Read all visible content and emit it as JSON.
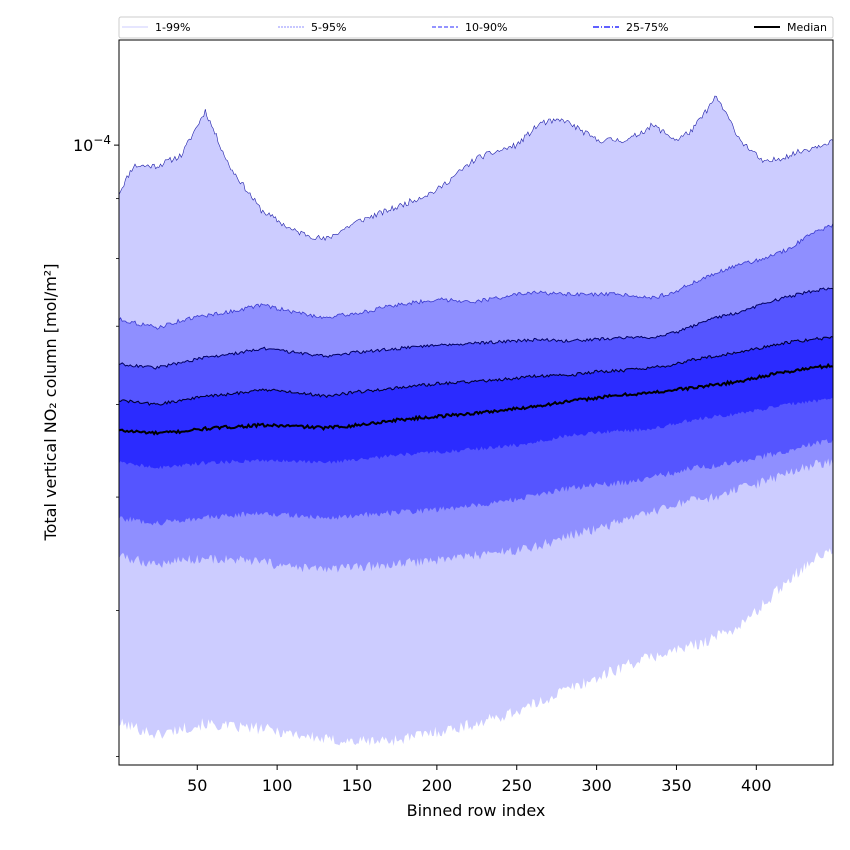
{
  "chart_data": {
    "type": "area",
    "title": "",
    "xlabel": "Binned row index",
    "ylabel": "Total vertical NO₂ column [mol/m²]",
    "yscale": "log",
    "xlim": [
      1,
      448
    ],
    "ylim": [
      2.95e-05,
      0.000123
    ],
    "x_ticks": [
      50,
      100,
      150,
      200,
      250,
      300,
      350,
      400
    ],
    "x_tick_labels": [
      "50",
      "100",
      "150",
      "200",
      "250",
      "300",
      "350",
      "400"
    ],
    "y_major_tick_value": 0.0001,
    "y_major_tick_label_base": "10",
    "y_major_tick_label_exp": "−4",
    "y_minor_ticks": [
      3e-05,
      4e-05,
      5e-05,
      6e-05,
      7e-05,
      8e-05,
      9e-05
    ],
    "legend": {
      "location": "top, spanning full width",
      "entries": [
        "1-99%",
        "5-95%",
        "10-90%",
        "25-75%",
        "Median"
      ]
    },
    "colors": {
      "band_outer": "#ccccff",
      "band_5_95": "#8f8fff",
      "band_10_90": "#5555ff",
      "band_25_75": "#2b2bff",
      "median": "#000000",
      "outline_top": "#1f1fa8"
    },
    "anchor_x": [
      1,
      10,
      25,
      40,
      55,
      70,
      90,
      110,
      130,
      150,
      175,
      200,
      225,
      250,
      265,
      280,
      300,
      320,
      335,
      350,
      360,
      375,
      390,
      405,
      420,
      435,
      448
    ],
    "series": [
      {
        "name": "1-99%",
        "lower": [
          3.2e-05,
          3.18e-05,
          3.13e-05,
          3.17e-05,
          3.2e-05,
          3.18e-05,
          3.17e-05,
          3.14e-05,
          3.1e-05,
          3.09e-05,
          3.1e-05,
          3.15e-05,
          3.2e-05,
          3.28e-05,
          3.34e-05,
          3.42e-05,
          3.5e-05,
          3.6e-05,
          3.65e-05,
          3.7e-05,
          3.73e-05,
          3.8e-05,
          3.88e-05,
          4.05e-05,
          4.25e-05,
          4.42e-05,
          4.5e-05
        ],
        "upper": [
          9.1e-05,
          9.6e-05,
          9.6e-05,
          9.8e-05,
          0.000107,
          9.6e-05,
          8.8e-05,
          8.45e-05,
          8.3e-05,
          8.6e-05,
          8.85e-05,
          9.15e-05,
          9.75e-05,
          0.0001,
          0.0001045,
          0.000105,
          0.000101,
          0.000101,
          0.000104,
          0.000101,
          0.000103,
          0.00011,
          0.000101,
          9.65e-05,
          9.8e-05,
          9.95e-05,
          0.000101
        ]
      },
      {
        "name": "5-95%",
        "lower": [
          4.45e-05,
          4.42e-05,
          4.38e-05,
          4.42e-05,
          4.43e-05,
          4.42e-05,
          4.4e-05,
          4.35e-05,
          4.34e-05,
          4.35e-05,
          4.38e-05,
          4.42e-05,
          4.46e-05,
          4.5e-05,
          4.55e-05,
          4.62e-05,
          4.7e-05,
          4.78e-05,
          4.85e-05,
          4.93e-05,
          4.96e-05,
          5e-05,
          5.08e-05,
          5.15e-05,
          5.25e-05,
          5.32e-05,
          5.36e-05
        ],
        "upper": [
          7.1e-05,
          7.05e-05,
          6.98e-05,
          7.08e-05,
          7.15e-05,
          7.2e-05,
          7.3e-05,
          7.2e-05,
          7.12e-05,
          7.18e-05,
          7.3e-05,
          7.38e-05,
          7.35e-05,
          7.45e-05,
          7.48e-05,
          7.45e-05,
          7.45e-05,
          7.45e-05,
          7.4e-05,
          7.5e-05,
          7.62e-05,
          7.78e-05,
          7.9e-05,
          8e-05,
          8.15e-05,
          8.4e-05,
          8.55e-05
        ]
      },
      {
        "name": "10-90%",
        "lower": [
          4.8e-05,
          4.78e-05,
          4.75e-05,
          4.78e-05,
          4.8e-05,
          4.82e-05,
          4.85e-05,
          4.82e-05,
          4.8e-05,
          4.82e-05,
          4.85e-05,
          4.88e-05,
          4.92e-05,
          4.98e-05,
          5.02e-05,
          5.08e-05,
          5.12e-05,
          5.15e-05,
          5.2e-05,
          5.25e-05,
          5.3e-05,
          5.32e-05,
          5.36e-05,
          5.42e-05,
          5.48e-05,
          5.55e-05,
          5.58e-05
        ],
        "upper": [
          6.5e-05,
          6.48e-05,
          6.45e-05,
          6.52e-05,
          6.58e-05,
          6.62e-05,
          6.7e-05,
          6.65e-05,
          6.6e-05,
          6.65e-05,
          6.7e-05,
          6.75e-05,
          6.77e-05,
          6.8e-05,
          6.82e-05,
          6.8e-05,
          6.82e-05,
          6.85e-05,
          6.85e-05,
          6.92e-05,
          7e-05,
          7.12e-05,
          7.2e-05,
          7.32e-05,
          7.42e-05,
          7.5e-05,
          7.55e-05
        ]
      },
      {
        "name": "25-75%",
        "lower": [
          5.35e-05,
          5.33e-05,
          5.3e-05,
          5.32e-05,
          5.35e-05,
          5.36e-05,
          5.38e-05,
          5.37e-05,
          5.35e-05,
          5.38e-05,
          5.43e-05,
          5.46e-05,
          5.5e-05,
          5.54e-05,
          5.58e-05,
          5.64e-05,
          5.68e-05,
          5.7e-05,
          5.72e-05,
          5.78e-05,
          5.82e-05,
          5.86e-05,
          5.9e-05,
          5.95e-05,
          6e-05,
          6.04e-05,
          6.06e-05
        ],
        "upper": [
          6.05e-05,
          6.03e-05,
          6e-05,
          6.05e-05,
          6.1e-05,
          6.12e-05,
          6.18e-05,
          6.15e-05,
          6.1e-05,
          6.15e-05,
          6.2e-05,
          6.25e-05,
          6.28e-05,
          6.32e-05,
          6.35e-05,
          6.35e-05,
          6.4e-05,
          6.42e-05,
          6.45e-05,
          6.5e-05,
          6.55e-05,
          6.6e-05,
          6.65e-05,
          6.72e-05,
          6.78e-05,
          6.82e-05,
          6.85e-05
        ]
      },
      {
        "name": "Median",
        "values": [
          5.7e-05,
          5.69e-05,
          5.67e-05,
          5.69e-05,
          5.72e-05,
          5.74e-05,
          5.76e-05,
          5.75e-05,
          5.73e-05,
          5.76e-05,
          5.82e-05,
          5.86e-05,
          5.9e-05,
          5.95e-05,
          5.99e-05,
          6.03e-05,
          6.08e-05,
          6.12e-05,
          6.14e-05,
          6.18e-05,
          6.2e-05,
          6.24e-05,
          6.28e-05,
          6.35e-05,
          6.4e-05,
          6.45e-05,
          6.48e-05
        ]
      }
    ]
  }
}
